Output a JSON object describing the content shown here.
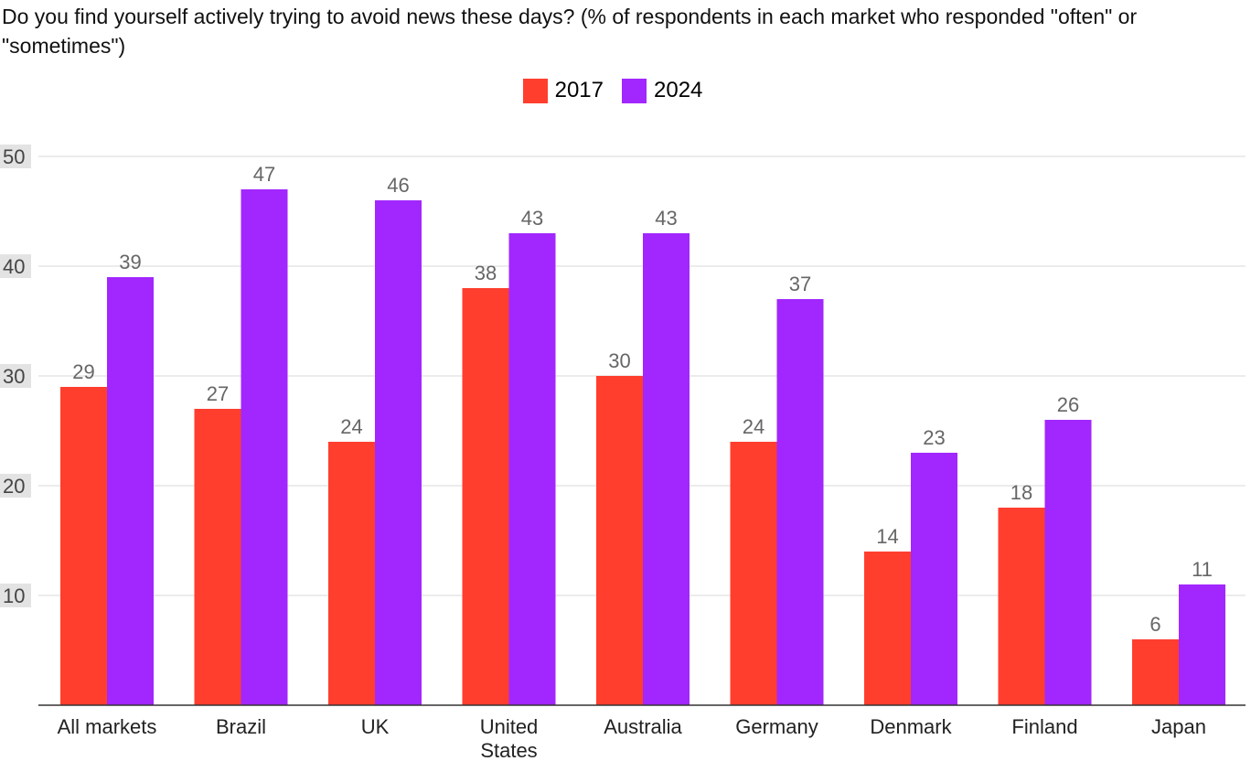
{
  "chart_data": {
    "type": "bar",
    "title": "Do you find yourself actively trying to avoid news these days? (% of respondents in each market who responded \"often\" or \"sometimes\")",
    "xlabel": "",
    "ylabel": "",
    "ylim": [
      0,
      50
    ],
    "yticks": [
      10,
      20,
      30,
      40,
      50
    ],
    "categories": [
      "All markets",
      "Brazil",
      "UK",
      "United States",
      "Australia",
      "Germany",
      "Denmark",
      "Finland",
      "Japan"
    ],
    "series": [
      {
        "name": "2017",
        "color": "#ff3e2e",
        "values": [
          29,
          27,
          24,
          38,
          30,
          24,
          14,
          18,
          6
        ]
      },
      {
        "name": "2024",
        "color": "#a227fe",
        "values": [
          39,
          47,
          46,
          43,
          43,
          37,
          23,
          26,
          11
        ]
      }
    ],
    "legend": "top-center",
    "grid": true
  }
}
